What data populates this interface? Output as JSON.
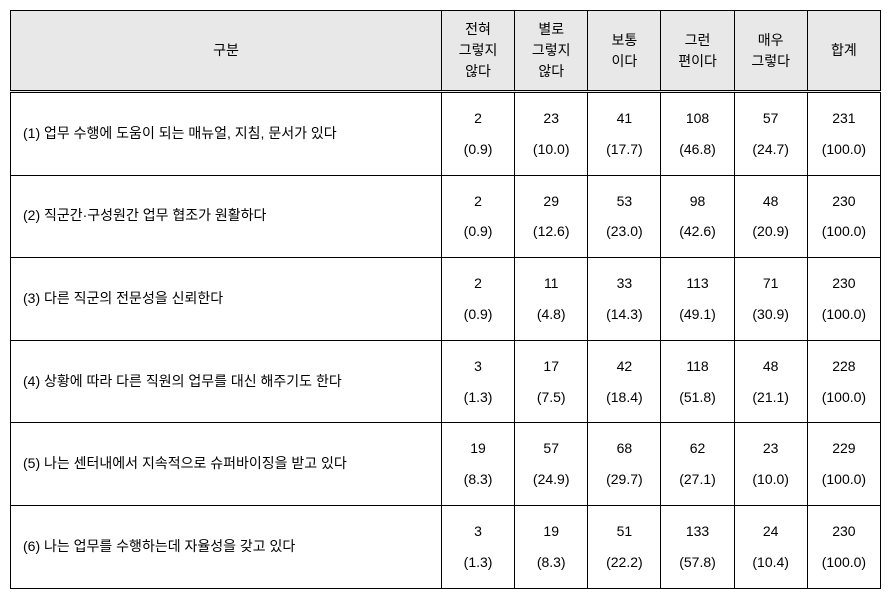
{
  "table": {
    "headers": [
      "구분",
      "전혀\n그렇지\n않다",
      "별로\n그렇지\n않다",
      "보통\n이다",
      "그런\n편이다",
      "매우\n그렇다",
      "합계"
    ],
    "rows": [
      {
        "label": "(1) 업무 수행에 도움이 되는 매뉴얼, 지침, 문서가 있다",
        "counts": [
          "2",
          "23",
          "41",
          "108",
          "57",
          "231"
        ],
        "pcts": [
          "(0.9)",
          "(10.0)",
          "(17.7)",
          "(46.8)",
          "(24.7)",
          "(100.0)"
        ]
      },
      {
        "label": "(2) 직군간·구성원간 업무 협조가 원활하다",
        "counts": [
          "2",
          "29",
          "53",
          "98",
          "48",
          "230"
        ],
        "pcts": [
          "(0.9)",
          "(12.6)",
          "(23.0)",
          "(42.6)",
          "(20.9)",
          "(100.0)"
        ]
      },
      {
        "label": "(3) 다른 직군의 전문성을 신뢰한다",
        "counts": [
          "2",
          "11",
          "33",
          "113",
          "71",
          "230"
        ],
        "pcts": [
          "(0.9)",
          "(4.8)",
          "(14.3)",
          "(49.1)",
          "(30.9)",
          "(100.0)"
        ]
      },
      {
        "label": "(4) 상황에 따라 다른 직원의 업무를 대신 해주기도 한다",
        "counts": [
          "3",
          "17",
          "42",
          "118",
          "48",
          "228"
        ],
        "pcts": [
          "(1.3)",
          "(7.5)",
          "(18.4)",
          "(51.8)",
          "(21.1)",
          "(100.0)"
        ]
      },
      {
        "label": "(5) 나는 센터내에서 지속적으로 슈퍼바이징을 받고 있다",
        "counts": [
          "19",
          "57",
          "68",
          "62",
          "23",
          "229"
        ],
        "pcts": [
          "(8.3)",
          "(24.9)",
          "(29.7)",
          "(27.1)",
          "(10.0)",
          "(100.0)"
        ]
      },
      {
        "label": "(6) 나는 업무를 수행하는데 자율성을 갖고 있다",
        "counts": [
          "3",
          "19",
          "51",
          "133",
          "24",
          "230"
        ],
        "pcts": [
          "(1.3)",
          "(8.3)",
          "(22.2)",
          "(57.8)",
          "(10.4)",
          "(100.0)"
        ]
      }
    ]
  }
}
